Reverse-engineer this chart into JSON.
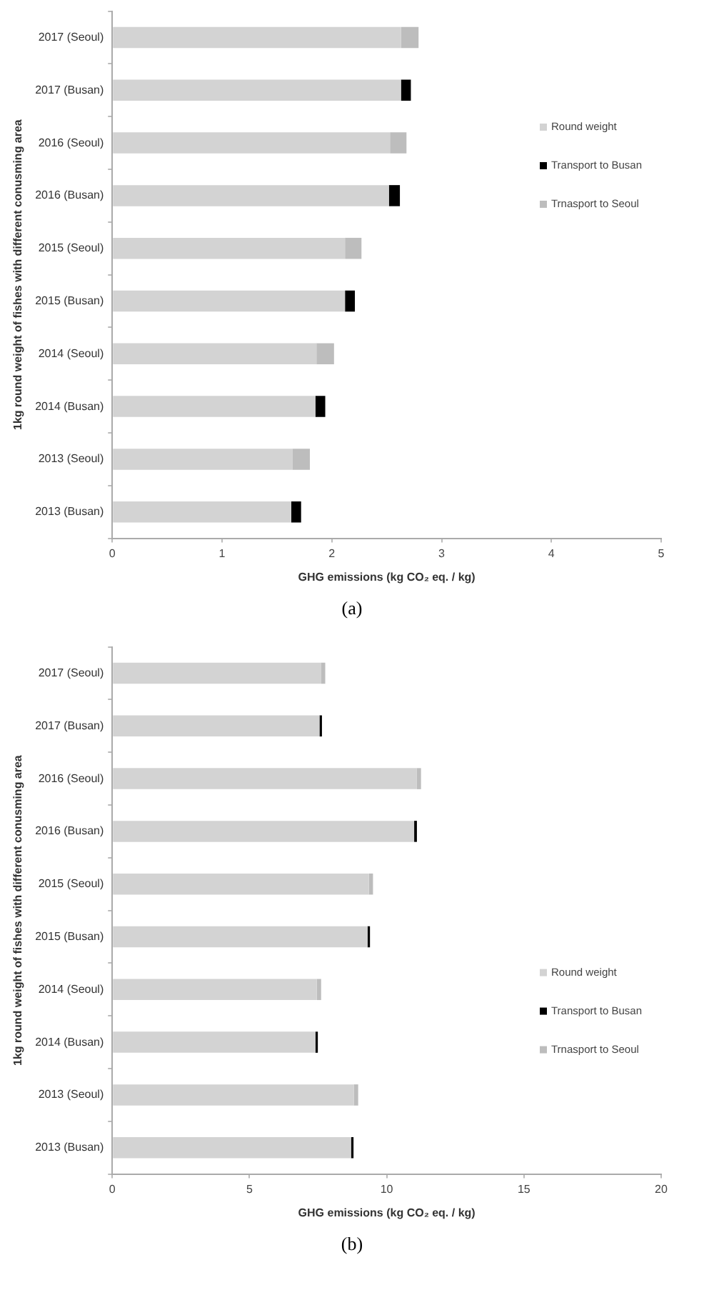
{
  "chart_data": [
    {
      "type": "bar",
      "orientation": "horizontal",
      "stacked": true,
      "xlabel": "GHG emissions (kg CO₂ eq. / kg)",
      "ylabel": "1kg round weight of fishes with different conusming area",
      "categories": [
        "2017 (Seoul)",
        "2017 (Busan)",
        "2016 (Seoul)",
        "2016 (Busan)",
        "2015 (Seoul)",
        "2015 (Busan)",
        "2014 (Seoul)",
        "2014 (Busan)",
        "2013 (Seoul)",
        "2013 (Busan)"
      ],
      "series": [
        {
          "name": "Round weight",
          "color": "#d3d3d3",
          "values": [
            2.63,
            2.63,
            2.53,
            2.52,
            2.12,
            2.12,
            1.86,
            1.85,
            1.64,
            1.63
          ]
        },
        {
          "name": "Transport to Busan",
          "color": "#000000",
          "values": [
            null,
            0.09,
            null,
            0.1,
            null,
            0.09,
            null,
            0.09,
            null,
            0.09
          ]
        },
        {
          "name": "Trnasport to Seoul",
          "color": "#bdbdbd",
          "values": [
            0.16,
            null,
            0.15,
            null,
            0.15,
            null,
            0.16,
            null,
            0.16,
            null
          ]
        }
      ],
      "xlim": [
        0,
        5
      ],
      "xticks": [
        0,
        1,
        2,
        3,
        4,
        5
      ],
      "grid": false,
      "legend": "right",
      "annotations": [
        "(a)"
      ]
    },
    {
      "type": "bar",
      "orientation": "horizontal",
      "stacked": true,
      "xlabel": "GHG emissions (kg CO₂ eq. / kg)",
      "ylabel": "1kg round weight of fishes with different conusming area",
      "categories": [
        "2017 (Seoul)",
        "2017 (Busan)",
        "2016 (Seoul)",
        "2016 (Busan)",
        "2015 (Seoul)",
        "2015 (Busan)",
        "2014 (Seoul)",
        "2014 (Busan)",
        "2013 (Seoul)",
        "2013 (Busan)"
      ],
      "series": [
        {
          "name": "Round weight",
          "color": "#d3d3d3",
          "values": [
            7.6,
            7.55,
            11.1,
            11.0,
            9.35,
            9.3,
            7.45,
            7.4,
            8.8,
            8.7
          ]
        },
        {
          "name": "Transport to Busan",
          "color": "#000000",
          "values": [
            null,
            0.09,
            null,
            0.1,
            null,
            0.09,
            null,
            0.09,
            null,
            0.09
          ]
        },
        {
          "name": "Trnasport to Seoul",
          "color": "#bdbdbd",
          "values": [
            0.16,
            null,
            0.15,
            null,
            0.15,
            null,
            0.16,
            null,
            0.16,
            null
          ]
        }
      ],
      "xlim": [
        0,
        20
      ],
      "xticks": [
        0,
        5,
        10,
        15,
        20
      ],
      "grid": false,
      "legend": "bottom right",
      "annotations": [
        "(b)"
      ]
    }
  ]
}
